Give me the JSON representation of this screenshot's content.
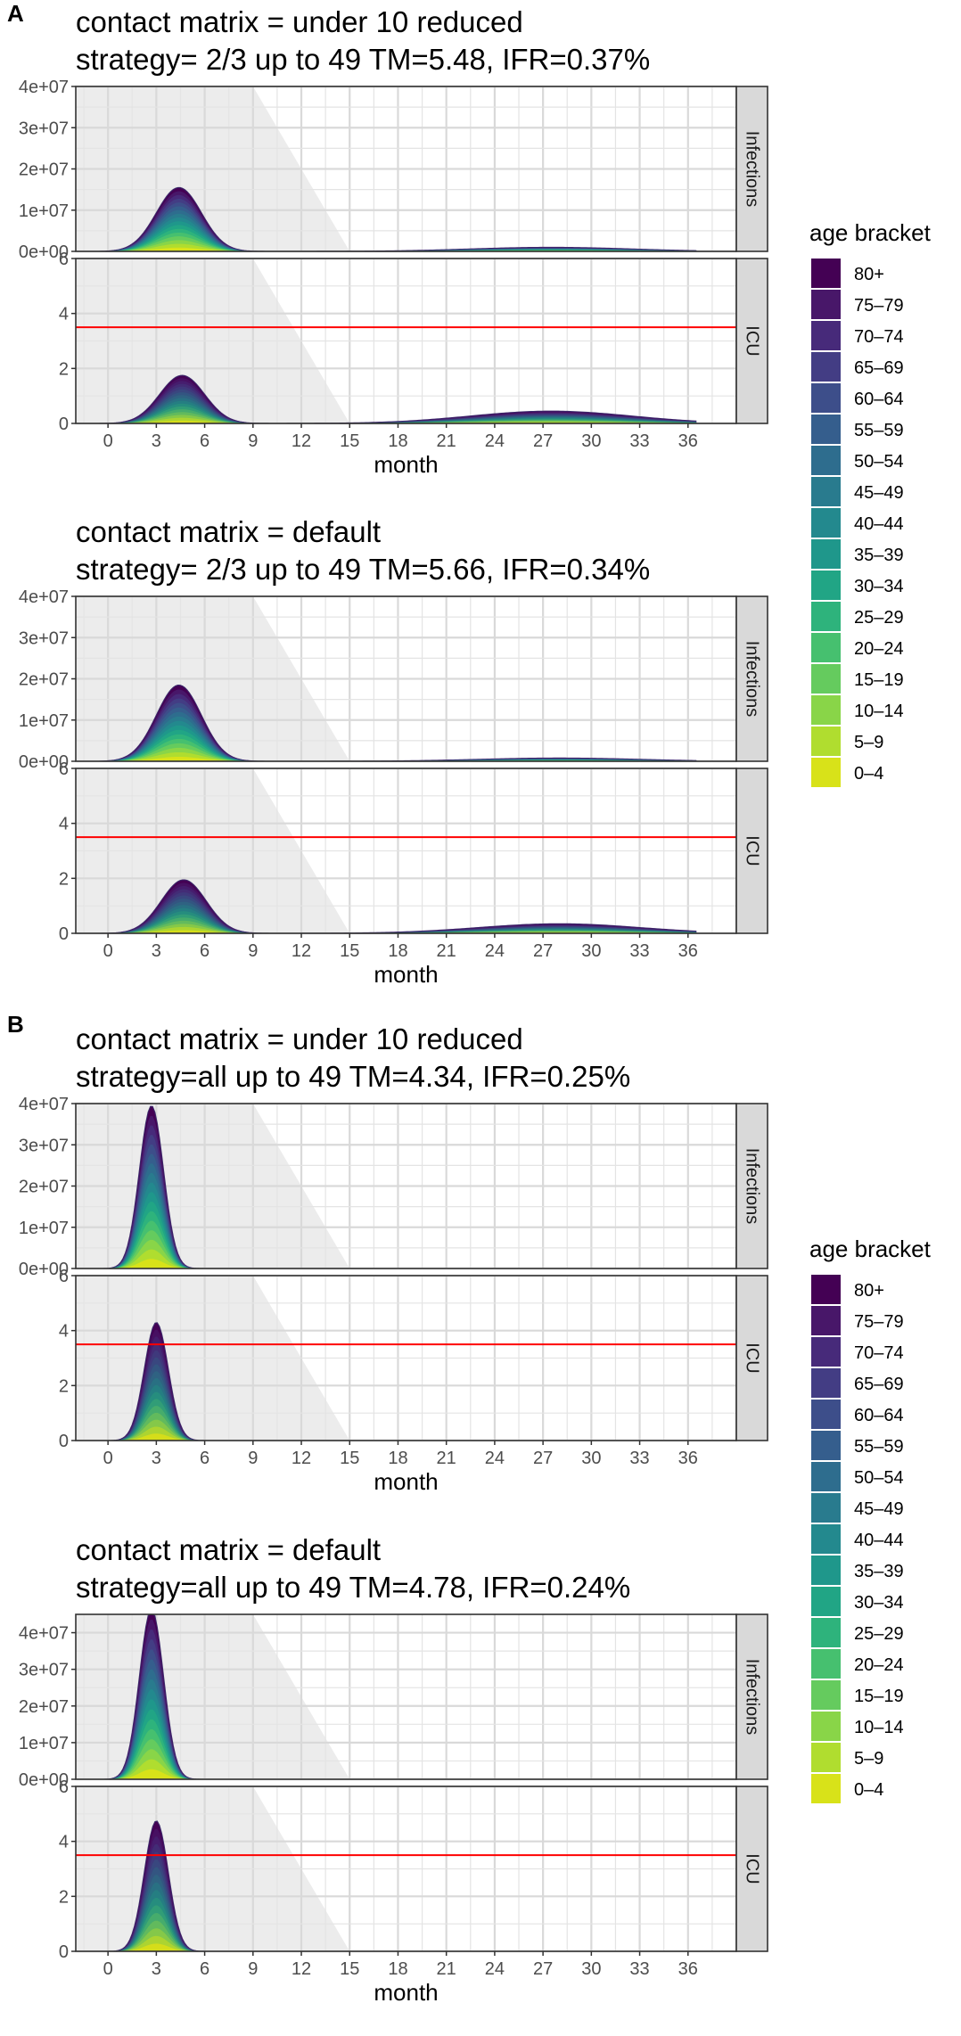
{
  "figure": {
    "panel_labels": [
      "A",
      "B"
    ],
    "legend": {
      "title": "age bracket",
      "items": [
        "80+",
        "75–79",
        "70–74",
        "65–69",
        "60–64",
        "55–59",
        "50–54",
        "45–49",
        "40–44",
        "35–39",
        "30–34",
        "25–29",
        "20–24",
        "15–19",
        "10–14",
        "5–9",
        "0–4"
      ],
      "colors": [
        "#440154",
        "#481769",
        "#472A7A",
        "#433D84",
        "#3D4E8A",
        "#355E8D",
        "#2E6D8E",
        "#297B8E",
        "#23898E",
        "#1F978B",
        "#21A585",
        "#2EB37C",
        "#46C06F",
        "#65CB5E",
        "#89D548",
        "#B0DD2F",
        "#D8E219"
      ]
    },
    "red_line_color": "#ff0000"
  },
  "chart_data": [
    {
      "type": "area",
      "panel": "A",
      "title": "contact matrix = under 10 reduced",
      "subtitle": "strategy= 2/3 up to 49  TM=5.48, IFR=0.37%",
      "xlabel": "month",
      "x_ticks": [
        "0",
        "3",
        "6",
        "9",
        "12",
        "15",
        "18",
        "21",
        "24",
        "27",
        "30",
        "33",
        "36"
      ],
      "xlim": [
        -2,
        39
      ],
      "facets": [
        {
          "strip": "Infections",
          "ylim": [
            0,
            40000000
          ],
          "y_ticks": [
            "0e+00",
            "1e+07",
            "2e+07",
            "3e+07",
            "4e+07"
          ],
          "y_tick_values": [
            0,
            10000000,
            20000000,
            30000000,
            40000000
          ],
          "peaks": [
            {
              "month": 4.4,
              "value": 15500000,
              "width": 1.4
            },
            {
              "month": 27.5,
              "value": 1000000,
              "width": 5
            }
          ]
        },
        {
          "strip": "ICU",
          "ylim": [
            0,
            6
          ],
          "y_ticks": [
            "0",
            "2",
            "4",
            "6"
          ],
          "y_tick_values": [
            0,
            2,
            4,
            6
          ],
          "hline": 3.5,
          "peaks": [
            {
              "month": 4.6,
              "value": 1.75,
              "width": 1.4
            },
            {
              "month": 27.5,
              "value": 0.45,
              "width": 5
            }
          ]
        }
      ]
    },
    {
      "type": "area",
      "panel": "A",
      "title": "contact matrix = default",
      "subtitle": "strategy= 2/3 up to 49  TM=5.66, IFR=0.34%",
      "xlabel": "month",
      "x_ticks": [
        "0",
        "3",
        "6",
        "9",
        "12",
        "15",
        "18",
        "21",
        "24",
        "27",
        "30",
        "33",
        "36"
      ],
      "xlim": [
        -2,
        39
      ],
      "facets": [
        {
          "strip": "Infections",
          "ylim": [
            0,
            40000000
          ],
          "y_ticks": [
            "0e+00",
            "1e+07",
            "2e+07",
            "3e+07",
            "4e+07"
          ],
          "y_tick_values": [
            0,
            10000000,
            20000000,
            30000000,
            40000000
          ],
          "peaks": [
            {
              "month": 4.4,
              "value": 18500000,
              "width": 1.4
            },
            {
              "month": 28,
              "value": 800000,
              "width": 5
            }
          ]
        },
        {
          "strip": "ICU",
          "ylim": [
            0,
            6
          ],
          "y_ticks": [
            "0",
            "2",
            "4",
            "6"
          ],
          "y_tick_values": [
            0,
            2,
            4,
            6
          ],
          "hline": 3.5,
          "peaks": [
            {
              "month": 4.7,
              "value": 1.95,
              "width": 1.4
            },
            {
              "month": 28,
              "value": 0.35,
              "width": 5
            }
          ]
        }
      ]
    },
    {
      "type": "area",
      "panel": "B",
      "title": "contact matrix = under 10 reduced",
      "subtitle": "strategy=all up to 49  TM=4.34, IFR=0.25%",
      "xlabel": "month",
      "x_ticks": [
        "0",
        "3",
        "6",
        "9",
        "12",
        "15",
        "18",
        "21",
        "24",
        "27",
        "30",
        "33",
        "36"
      ],
      "xlim": [
        -2,
        39
      ],
      "facets": [
        {
          "strip": "Infections",
          "ylim": [
            0,
            40000000
          ],
          "y_ticks": [
            "0e+00",
            "1e+07",
            "2e+07",
            "3e+07",
            "4e+07"
          ],
          "y_tick_values": [
            0,
            10000000,
            20000000,
            30000000,
            40000000
          ],
          "peaks": [
            {
              "month": 2.7,
              "value": 39500000,
              "width": 0.75
            }
          ]
        },
        {
          "strip": "ICU",
          "ylim": [
            0,
            6
          ],
          "y_ticks": [
            "0",
            "2",
            "4",
            "6"
          ],
          "y_tick_values": [
            0,
            2,
            4,
            6
          ],
          "hline": 3.5,
          "peaks": [
            {
              "month": 3.0,
              "value": 4.3,
              "width": 0.75
            }
          ]
        }
      ]
    },
    {
      "type": "area",
      "panel": "B",
      "title": "contact matrix = default",
      "subtitle": "strategy=all up to 49  TM=4.78, IFR=0.24%",
      "xlabel": "month",
      "x_ticks": [
        "0",
        "3",
        "6",
        "9",
        "12",
        "15",
        "18",
        "21",
        "24",
        "27",
        "30",
        "33",
        "36"
      ],
      "xlim": [
        -2,
        39
      ],
      "facets": [
        {
          "strip": "Infections",
          "ylim": [
            0,
            45000000
          ],
          "y_ticks": [
            "0e+00",
            "1e+07",
            "2e+07",
            "3e+07",
            "4e+07"
          ],
          "y_tick_values": [
            0,
            10000000,
            20000000,
            30000000,
            40000000
          ],
          "peaks": [
            {
              "month": 2.7,
              "value": 46500000,
              "width": 0.75
            }
          ]
        },
        {
          "strip": "ICU",
          "ylim": [
            0,
            6
          ],
          "y_ticks": [
            "0",
            "2",
            "4",
            "6"
          ],
          "y_tick_values": [
            0,
            2,
            4,
            6
          ],
          "hline": 3.5,
          "peaks": [
            {
              "month": 3.0,
              "value": 4.75,
              "width": 0.75
            }
          ]
        }
      ]
    }
  ]
}
